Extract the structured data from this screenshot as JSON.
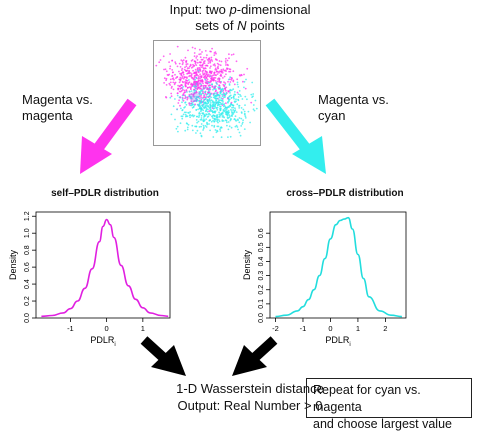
{
  "intro": {
    "line1": "Input: two ",
    "p": "p",
    "line1b": "-dimensional",
    "line2a": "sets of ",
    "N": "N",
    "line2b": " points"
  },
  "labels": {
    "left_1": "Magenta vs.",
    "left_2": "magenta",
    "right_1": "Magenta vs.",
    "right_2": "cyan"
  },
  "colors": {
    "magenta": "#ff33ee",
    "cyan": "#33eeee",
    "arrow_black": "#000000",
    "curve_magenta": "#e020e0",
    "curve_cyan": "#22dddd"
  },
  "final": {
    "line1": "1-D Wasserstein distance",
    "line2": "Output: Real Number > 0"
  },
  "note": {
    "line1": "Repeat for cyan vs. magenta",
    "line2": "and choose largest value"
  },
  "chart_data": [
    {
      "type": "line",
      "title": "self–PDLR distribution",
      "xlabel": "PDLR",
      "xlabel_sub": "i",
      "ylabel": "Density",
      "xlim": [
        -1.95,
        1.75
      ],
      "ylim": [
        0,
        1.25
      ],
      "xticks": [
        -1,
        0,
        1
      ],
      "yticks": [
        0.0,
        0.2,
        0.4,
        0.6,
        0.8,
        1.0,
        1.2
      ],
      "series": [
        {
          "color": "#e020e0",
          "x": [
            -1.8,
            -1.5,
            -1.2,
            -1.0,
            -0.8,
            -0.6,
            -0.4,
            -0.2,
            -0.1,
            0.0,
            0.1,
            0.2,
            0.4,
            0.6,
            0.8,
            1.0,
            1.2,
            1.5,
            1.7
          ],
          "y": [
            0.02,
            0.03,
            0.06,
            0.11,
            0.2,
            0.35,
            0.58,
            0.9,
            1.08,
            1.16,
            1.1,
            0.95,
            0.62,
            0.38,
            0.22,
            0.12,
            0.06,
            0.03,
            0.02
          ]
        }
      ]
    },
    {
      "type": "line",
      "title": "cross–PDLR distribution",
      "xlabel": "PDLR",
      "xlabel_sub": "i",
      "ylabel": "Density",
      "xlim": [
        -2.2,
        2.75
      ],
      "ylim": [
        0,
        0.75
      ],
      "xticks": [
        -2,
        -1,
        0,
        1,
        2
      ],
      "yticks": [
        0.0,
        0.1,
        0.2,
        0.3,
        0.4,
        0.5,
        0.6
      ],
      "series": [
        {
          "color": "#22dddd",
          "x": [
            -2.0,
            -1.6,
            -1.2,
            -1.0,
            -0.8,
            -0.6,
            -0.4,
            -0.2,
            0.0,
            0.2,
            0.35,
            0.5,
            0.65,
            0.8,
            1.0,
            1.2,
            1.4,
            1.8,
            2.2,
            2.6
          ],
          "y": [
            0.01,
            0.02,
            0.05,
            0.08,
            0.13,
            0.2,
            0.3,
            0.42,
            0.56,
            0.66,
            0.69,
            0.7,
            0.71,
            0.63,
            0.45,
            0.28,
            0.15,
            0.05,
            0.02,
            0.01
          ]
        }
      ]
    }
  ]
}
